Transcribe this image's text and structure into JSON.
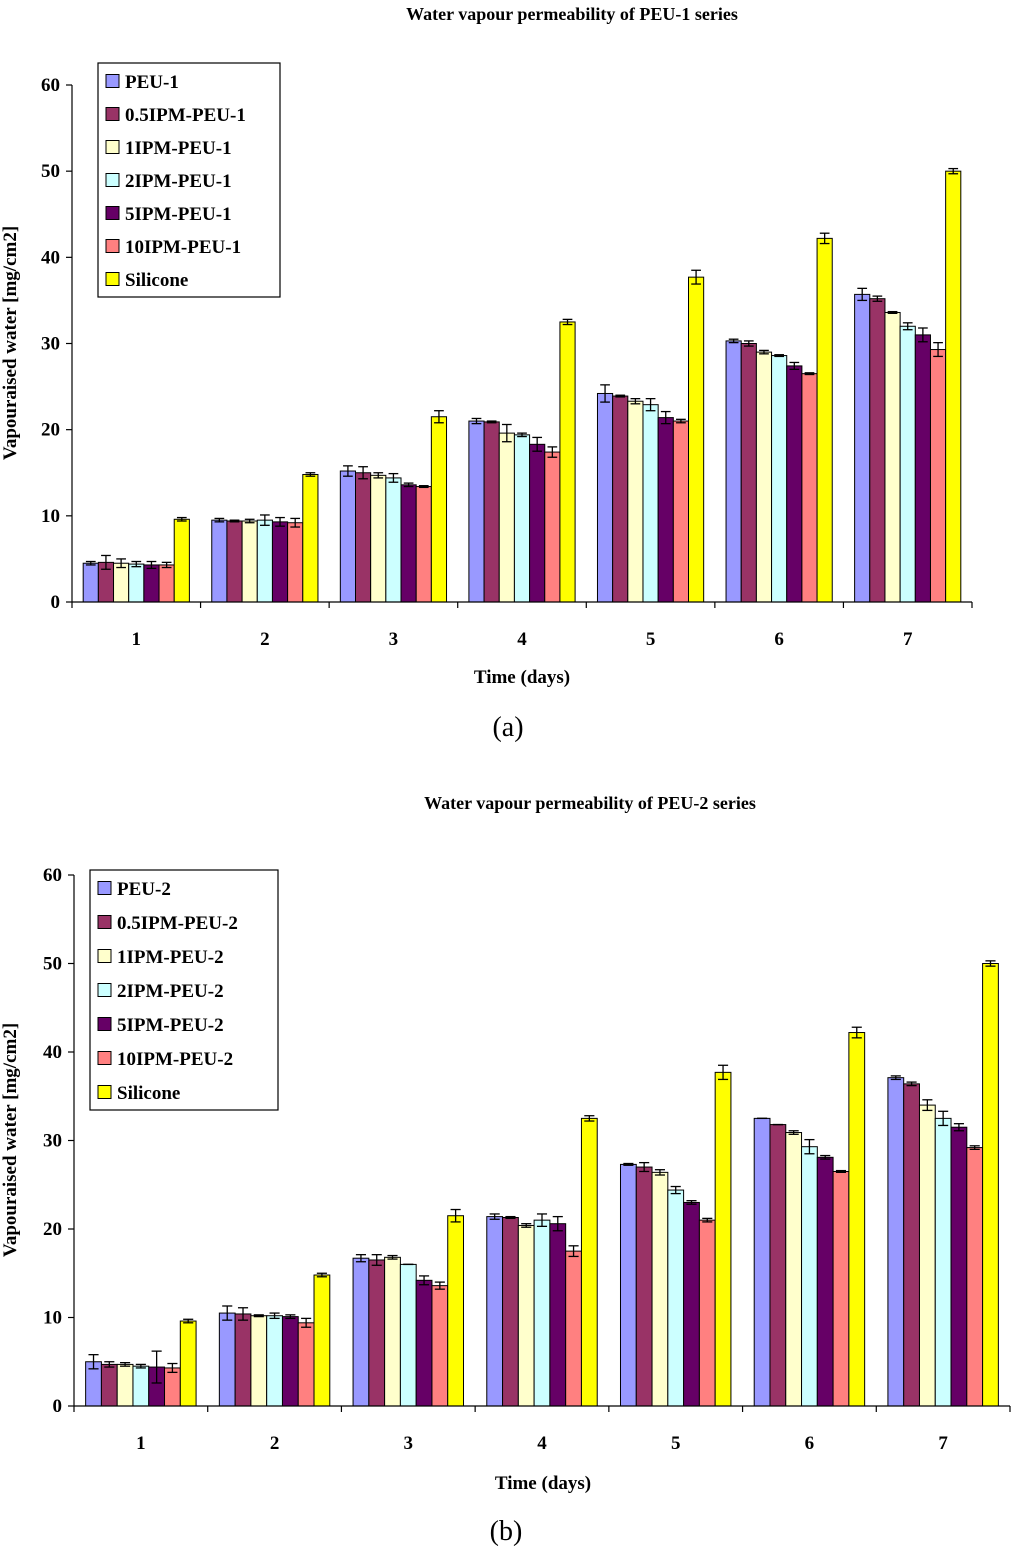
{
  "chart_data": [
    {
      "type": "bar",
      "title": "Water vapour permeability of PEU-1 series",
      "xlabel": "Time (days)",
      "ylabel": "Vapouraised water [mg/cm2]",
      "ylim": [
        0,
        60
      ],
      "yticks": [
        0,
        10,
        20,
        30,
        40,
        50,
        60
      ],
      "categories": [
        "1",
        "2",
        "3",
        "4",
        "5",
        "6",
        "7"
      ],
      "legend_position": "top-left",
      "caption": "(a)",
      "series": [
        {
          "name": "PEU-1",
          "color": "#9999ff",
          "values": [
            4.5,
            9.5,
            15.2,
            21.0,
            24.2,
            30.3,
            35.7
          ],
          "errors": [
            0.2,
            0.2,
            0.6,
            0.3,
            1.0,
            0.2,
            0.7
          ]
        },
        {
          "name": "0.5IPM-PEU-1",
          "color": "#993366",
          "values": [
            4.6,
            9.4,
            15.0,
            20.9,
            23.9,
            30.0,
            35.2
          ],
          "errors": [
            0.8,
            0.1,
            0.7,
            0.1,
            0.1,
            0.3,
            0.3
          ]
        },
        {
          "name": "1IPM-PEU-1",
          "color": "#ffffcc",
          "values": [
            4.5,
            9.4,
            14.7,
            19.6,
            23.3,
            29.0,
            33.6
          ],
          "errors": [
            0.5,
            0.2,
            0.3,
            1.0,
            0.3,
            0.2,
            0.1
          ]
        },
        {
          "name": "2IPM-PEU-1",
          "color": "#ccffff",
          "values": [
            4.4,
            9.5,
            14.4,
            19.4,
            22.9,
            28.6,
            32.0
          ],
          "errors": [
            0.3,
            0.6,
            0.5,
            0.2,
            0.7,
            0.1,
            0.4
          ]
        },
        {
          "name": "5IPM-PEU-1",
          "color": "#660066",
          "values": [
            4.3,
            9.3,
            13.6,
            18.3,
            21.4,
            27.4,
            31.0
          ],
          "errors": [
            0.4,
            0.5,
            0.2,
            0.8,
            0.7,
            0.4,
            0.8
          ]
        },
        {
          "name": "10IPM-PEU-1",
          "color": "#ff8080",
          "values": [
            4.3,
            9.2,
            13.4,
            17.4,
            21.0,
            26.5,
            29.3
          ],
          "errors": [
            0.3,
            0.5,
            0.1,
            0.6,
            0.2,
            0.1,
            0.8
          ]
        },
        {
          "name": "Silicone",
          "color": "#ffff00",
          "values": [
            9.6,
            14.8,
            21.5,
            32.5,
            37.7,
            42.2,
            50.0
          ],
          "errors": [
            0.2,
            0.2,
            0.7,
            0.3,
            0.8,
            0.6,
            0.3
          ]
        }
      ]
    },
    {
      "type": "bar",
      "title": "Water vapour permeability of PEU-2 series",
      "xlabel": "Time (days)",
      "ylabel": "Vapouraised water [mg/cm2]",
      "ylim": [
        0,
        60
      ],
      "yticks": [
        0,
        10,
        20,
        30,
        40,
        50,
        60
      ],
      "categories": [
        "1",
        "2",
        "3",
        "4",
        "5",
        "6",
        "7"
      ],
      "legend_position": "top-left",
      "caption": "(b)",
      "series": [
        {
          "name": "PEU-2",
          "color": "#9999ff",
          "values": [
            5.0,
            10.5,
            16.7,
            21.4,
            27.3,
            32.5,
            37.1
          ],
          "errors": [
            0.8,
            0.8,
            0.4,
            0.3,
            0.1,
            0.0,
            0.2
          ]
        },
        {
          "name": "0.5IPM-PEU-2",
          "color": "#993366",
          "values": [
            4.7,
            10.4,
            16.5,
            21.3,
            27.0,
            31.8,
            36.4
          ],
          "errors": [
            0.3,
            0.7,
            0.6,
            0.1,
            0.5,
            0.0,
            0.2
          ]
        },
        {
          "name": "1IPM-PEU-2",
          "color": "#ffffcc",
          "values": [
            4.7,
            10.2,
            16.8,
            20.4,
            26.4,
            30.9,
            34.0
          ],
          "errors": [
            0.2,
            0.1,
            0.2,
            0.2,
            0.3,
            0.2,
            0.6
          ]
        },
        {
          "name": "2IPM-PEU-2",
          "color": "#ccffff",
          "values": [
            4.5,
            10.2,
            16.0,
            21.0,
            24.4,
            29.3,
            32.5
          ],
          "errors": [
            0.2,
            0.3,
            0.0,
            0.7,
            0.4,
            0.8,
            0.8
          ]
        },
        {
          "name": "5IPM-PEU-2",
          "color": "#660066",
          "values": [
            4.4,
            10.1,
            14.2,
            20.6,
            23.0,
            28.1,
            31.5
          ],
          "errors": [
            1.8,
            0.2,
            0.5,
            0.8,
            0.2,
            0.2,
            0.4
          ]
        },
        {
          "name": "10IPM-PEU-2",
          "color": "#ff8080",
          "values": [
            4.3,
            9.4,
            13.6,
            17.5,
            21.0,
            26.5,
            29.2
          ],
          "errors": [
            0.5,
            0.5,
            0.4,
            0.6,
            0.2,
            0.1,
            0.2
          ]
        },
        {
          "name": "Silicone",
          "color": "#ffff00",
          "values": [
            9.6,
            14.8,
            21.5,
            32.5,
            37.7,
            42.2,
            50.0
          ],
          "errors": [
            0.2,
            0.2,
            0.7,
            0.3,
            0.8,
            0.6,
            0.3
          ]
        }
      ]
    }
  ]
}
